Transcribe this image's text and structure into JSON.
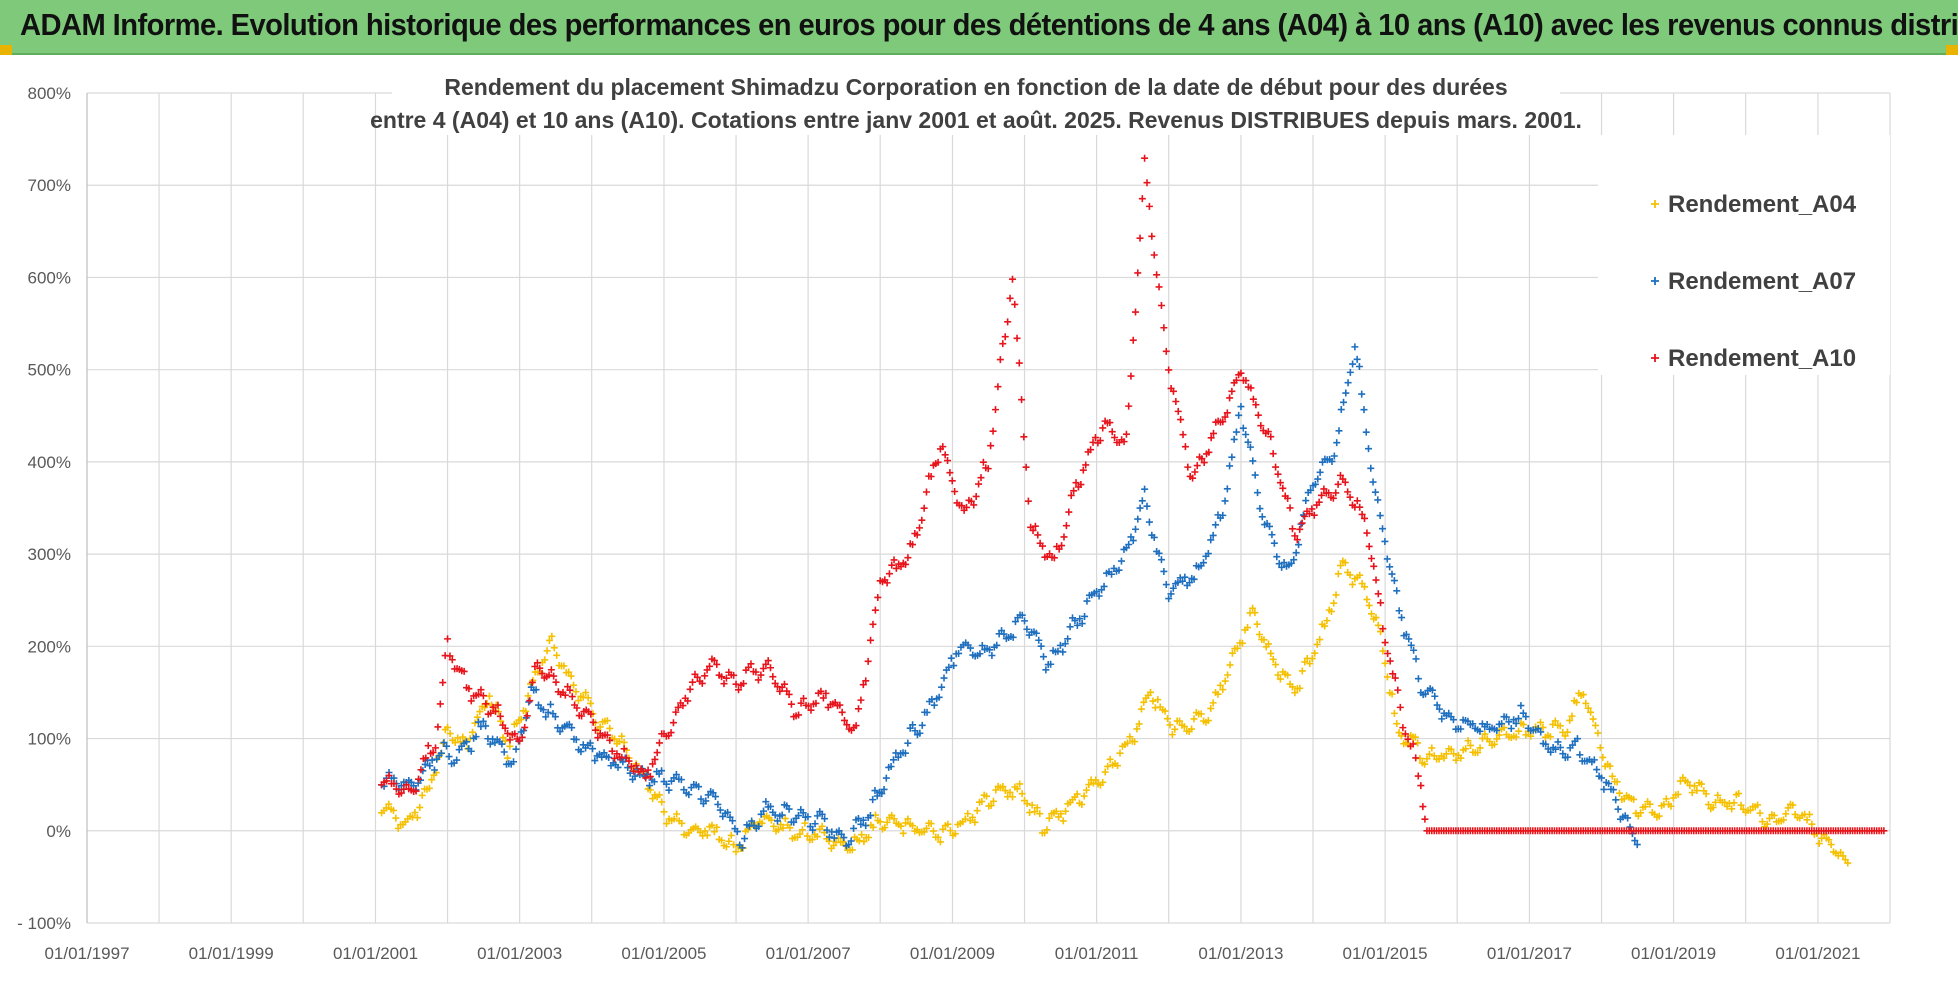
{
  "banner": {
    "title": "ADAM Informe. Evolution historique des performances en euros pour des détentions de 4 ans (A04) à 10 ans (A10) avec les revenus connus distribués"
  },
  "colors": {
    "banner_bg": "#7ec97a",
    "grid": "#d9d9d9",
    "A04": "#f5c000",
    "A07": "#1f6fbf",
    "A10": "#e8141b"
  },
  "chart_data": {
    "type": "scatter",
    "title_line1": "Rendement du placement Shimadzu Corporation en fonction de la date de début pour des durées",
    "title_line2": "entre 4 (A04) et 10 ans (A10). Cotations entre janv 2001 et août. 2025. Revenus DISTRIBUES depuis mars. 2001.",
    "y_ticks": [
      "800%",
      "700%",
      "600%",
      "500%",
      "400%",
      "300%",
      "200%",
      "100%",
      "0%",
      "- 100%"
    ],
    "x_ticks": [
      "01/01/1997",
      "01/01/1999",
      "01/01/2001",
      "01/01/2003",
      "01/01/2005",
      "01/01/2007",
      "01/01/2009",
      "01/01/2011",
      "01/01/2013",
      "01/01/2015",
      "01/01/2017",
      "01/01/2019",
      "01/01/2021"
    ],
    "xlim": [
      "1997-01-01",
      "2022-01-01"
    ],
    "ylim": [
      -100,
      800
    ],
    "y_unit": "%",
    "grid": true,
    "legend_position": "right",
    "marker": "+",
    "series": [
      {
        "name": "Rendement_A04",
        "color_key": "A04",
        "points": [
          [
            "2001-02-01",
            25
          ],
          [
            "2001-06-01",
            5
          ],
          [
            "2001-10-01",
            45
          ],
          [
            "2002-01-01",
            110
          ],
          [
            "2002-04-01",
            90
          ],
          [
            "2002-08-01",
            150
          ],
          [
            "2002-11-01",
            90
          ],
          [
            "2003-02-01",
            140
          ],
          [
            "2003-06-01",
            205
          ],
          [
            "2003-10-01",
            160
          ],
          [
            "2004-02-01",
            120
          ],
          [
            "2004-06-01",
            95
          ],
          [
            "2004-10-01",
            55
          ],
          [
            "2005-01-01",
            20
          ],
          [
            "2005-04-01",
            5
          ],
          [
            "2005-09-01",
            0
          ],
          [
            "2006-01-01",
            -20
          ],
          [
            "2006-05-01",
            15
          ],
          [
            "2006-10-01",
            0
          ],
          [
            "2007-03-01",
            -5
          ],
          [
            "2007-08-01",
            -20
          ],
          [
            "2008-01-01",
            10
          ],
          [
            "2008-06-01",
            5
          ],
          [
            "2008-11-01",
            -5
          ],
          [
            "2009-04-01",
            15
          ],
          [
            "2009-09-01",
            45
          ],
          [
            "2010-01-01",
            40
          ],
          [
            "2010-04-01",
            5
          ],
          [
            "2010-09-01",
            30
          ],
          [
            "2011-02-01",
            60
          ],
          [
            "2011-07-01",
            100
          ],
          [
            "2011-10-01",
            150
          ],
          [
            "2012-02-01",
            110
          ],
          [
            "2012-08-01",
            130
          ],
          [
            "2012-12-01",
            190
          ],
          [
            "2013-03-01",
            240
          ],
          [
            "2013-06-01",
            190
          ],
          [
            "2013-10-01",
            150
          ],
          [
            "2014-03-01",
            220
          ],
          [
            "2014-06-01",
            290
          ],
          [
            "2014-10-01",
            260
          ],
          [
            "2015-01-01",
            190
          ],
          [
            "2015-03-01",
            110
          ],
          [
            "2015-08-01",
            80
          ],
          [
            "2016-02-01",
            85
          ],
          [
            "2016-08-01",
            100
          ],
          [
            "2017-02-01",
            110
          ],
          [
            "2017-07-01",
            110
          ],
          [
            "2017-10-01",
            155
          ],
          [
            "2018-02-01",
            65
          ],
          [
            "2018-06-01",
            30
          ],
          [
            "2018-11-01",
            20
          ],
          [
            "2019-03-01",
            55
          ],
          [
            "2019-08-01",
            30
          ],
          [
            "2020-01-01",
            30
          ],
          [
            "2020-05-01",
            10
          ],
          [
            "2020-10-01",
            20
          ],
          [
            "2021-02-01",
            -10
          ],
          [
            "2021-06-01",
            -35
          ]
        ]
      },
      {
        "name": "Rendement_A07",
        "color_key": "A07",
        "points": [
          [
            "2001-02-01",
            55
          ],
          [
            "2001-07-01",
            50
          ],
          [
            "2001-12-01",
            85
          ],
          [
            "2002-03-01",
            80
          ],
          [
            "2002-07-01",
            115
          ],
          [
            "2002-12-01",
            70
          ],
          [
            "2003-03-01",
            150
          ],
          [
            "2003-07-01",
            120
          ],
          [
            "2003-12-01",
            90
          ],
          [
            "2004-05-01",
            75
          ],
          [
            "2004-09-01",
            60
          ],
          [
            "2005-01-01",
            55
          ],
          [
            "2005-06-01",
            45
          ],
          [
            "2005-10-01",
            30
          ],
          [
            "2006-02-01",
            -10
          ],
          [
            "2006-06-01",
            25
          ],
          [
            "2006-11-01",
            15
          ],
          [
            "2007-03-01",
            10
          ],
          [
            "2007-07-01",
            -10
          ],
          [
            "2007-11-01",
            15
          ],
          [
            "2008-02-01",
            60
          ],
          [
            "2008-06-01",
            100
          ],
          [
            "2008-10-01",
            140
          ],
          [
            "2009-02-01",
            200
          ],
          [
            "2009-06-01",
            190
          ],
          [
            "2009-10-01",
            210
          ],
          [
            "2010-01-01",
            230
          ],
          [
            "2010-05-01",
            180
          ],
          [
            "2010-09-01",
            220
          ],
          [
            "2011-01-01",
            260
          ],
          [
            "2011-06-01",
            300
          ],
          [
            "2011-09-01",
            360
          ],
          [
            "2012-01-01",
            260
          ],
          [
            "2012-06-01",
            280
          ],
          [
            "2012-10-01",
            350
          ],
          [
            "2013-01-01",
            460
          ],
          [
            "2013-05-01",
            330
          ],
          [
            "2013-09-01",
            280
          ],
          [
            "2014-01-01",
            380
          ],
          [
            "2014-05-01",
            420
          ],
          [
            "2014-08-01",
            530
          ],
          [
            "2014-11-01",
            380
          ],
          [
            "2015-03-01",
            250
          ],
          [
            "2015-07-01",
            160
          ],
          [
            "2015-12-01",
            120
          ],
          [
            "2016-06-01",
            110
          ],
          [
            "2016-12-01",
            125
          ],
          [
            "2017-05-01",
            85
          ],
          [
            "2017-09-01",
            90
          ],
          [
            "2018-01-01",
            60
          ],
          [
            "2018-05-01",
            10
          ],
          [
            "2018-07-01",
            -15
          ]
        ]
      },
      {
        "name": "Rendement_A10",
        "color_key": "A10",
        "points": [
          [
            "2001-02-01",
            55
          ],
          [
            "2001-07-01",
            40
          ],
          [
            "2001-11-01",
            100
          ],
          [
            "2002-01-01",
            200
          ],
          [
            "2002-05-01",
            150
          ],
          [
            "2002-09-01",
            130
          ],
          [
            "2003-01-01",
            90
          ],
          [
            "2003-04-01",
            180
          ],
          [
            "2003-09-01",
            150
          ],
          [
            "2004-02-01",
            110
          ],
          [
            "2004-06-01",
            80
          ],
          [
            "2004-10-01",
            60
          ],
          [
            "2005-01-01",
            100
          ],
          [
            "2005-05-01",
            150
          ],
          [
            "2005-09-01",
            180
          ],
          [
            "2006-01-01",
            160
          ],
          [
            "2006-06-01",
            180
          ],
          [
            "2006-11-01",
            130
          ],
          [
            "2007-04-01",
            145
          ],
          [
            "2007-09-01",
            110
          ],
          [
            "2008-01-01",
            270
          ],
          [
            "2008-06-01",
            300
          ],
          [
            "2008-11-01",
            420
          ],
          [
            "2009-03-01",
            340
          ],
          [
            "2009-07-01",
            400
          ],
          [
            "2009-11-01",
            600
          ],
          [
            "2010-02-01",
            330
          ],
          [
            "2010-06-01",
            290
          ],
          [
            "2010-10-01",
            380
          ],
          [
            "2011-02-01",
            440
          ],
          [
            "2011-06-01",
            420
          ],
          [
            "2011-09-01",
            720
          ],
          [
            "2012-01-01",
            500
          ],
          [
            "2012-05-01",
            380
          ],
          [
            "2012-10-01",
            450
          ],
          [
            "2013-01-01",
            500
          ],
          [
            "2013-06-01",
            420
          ],
          [
            "2013-10-01",
            320
          ],
          [
            "2014-02-01",
            360
          ],
          [
            "2014-06-01",
            380
          ],
          [
            "2014-10-01",
            330
          ],
          [
            "2015-01-01",
            210
          ],
          [
            "2015-04-01",
            120
          ],
          [
            "2015-07-01",
            55
          ],
          [
            "2015-08-01",
            0
          ],
          [
            "2016-06-01",
            0
          ],
          [
            "2017-06-01",
            0
          ],
          [
            "2018-06-01",
            0
          ],
          [
            "2019-06-01",
            0
          ],
          [
            "2020-06-01",
            0
          ],
          [
            "2021-06-01",
            0
          ],
          [
            "2021-12-01",
            0
          ]
        ]
      }
    ]
  }
}
